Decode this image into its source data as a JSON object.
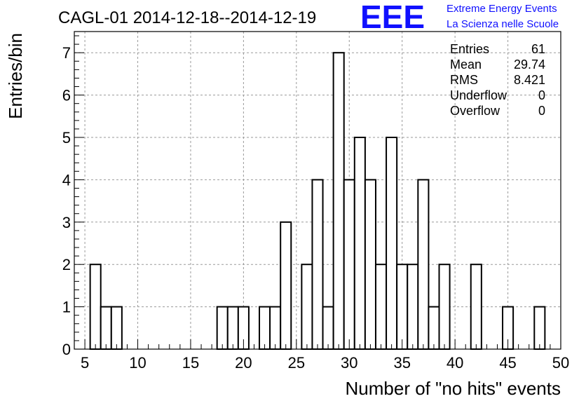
{
  "chart_data": {
    "type": "bar",
    "title": "CAGL-01 2014-12-18--2014-12-19",
    "xlabel": "Number of \"no hits\" events",
    "ylabel": "Entries/bin",
    "xlim": [
      4,
      50
    ],
    "ylim": [
      0,
      7.5
    ],
    "x_ticks": [
      5,
      10,
      15,
      20,
      25,
      30,
      35,
      40,
      45,
      50
    ],
    "y_ticks": [
      0,
      1,
      2,
      3,
      4,
      5,
      6,
      7
    ],
    "grid": true,
    "bin_width": 1,
    "bins": [
      {
        "x": 6,
        "y": 2
      },
      {
        "x": 7,
        "y": 1
      },
      {
        "x": 8,
        "y": 1
      },
      {
        "x": 18,
        "y": 1
      },
      {
        "x": 19,
        "y": 1
      },
      {
        "x": 20,
        "y": 1
      },
      {
        "x": 22,
        "y": 1
      },
      {
        "x": 23,
        "y": 1
      },
      {
        "x": 24,
        "y": 3
      },
      {
        "x": 26,
        "y": 2
      },
      {
        "x": 27,
        "y": 4
      },
      {
        "x": 28,
        "y": 1
      },
      {
        "x": 29,
        "y": 7
      },
      {
        "x": 30,
        "y": 4
      },
      {
        "x": 31,
        "y": 5
      },
      {
        "x": 32,
        "y": 4
      },
      {
        "x": 33,
        "y": 2
      },
      {
        "x": 34,
        "y": 5
      },
      {
        "x": 35,
        "y": 2
      },
      {
        "x": 36,
        "y": 2
      },
      {
        "x": 37,
        "y": 4
      },
      {
        "x": 38,
        "y": 1
      },
      {
        "x": 39,
        "y": 2
      },
      {
        "x": 42,
        "y": 2
      },
      {
        "x": 45,
        "y": 1
      },
      {
        "x": 48,
        "y": 1
      }
    ]
  },
  "stats": [
    {
      "label": "Entries",
      "value": "61"
    },
    {
      "label": "Mean",
      "value": "29.74"
    },
    {
      "label": "RMS",
      "value": "8.421"
    },
    {
      "label": "Underflow",
      "value": "0"
    },
    {
      "label": "Overflow",
      "value": "0"
    }
  ],
  "logo": {
    "mark": "EEE",
    "line1": "Extreme Energy Events",
    "line2": "La Scienza nelle Scuole",
    "color": "#1010ff"
  }
}
